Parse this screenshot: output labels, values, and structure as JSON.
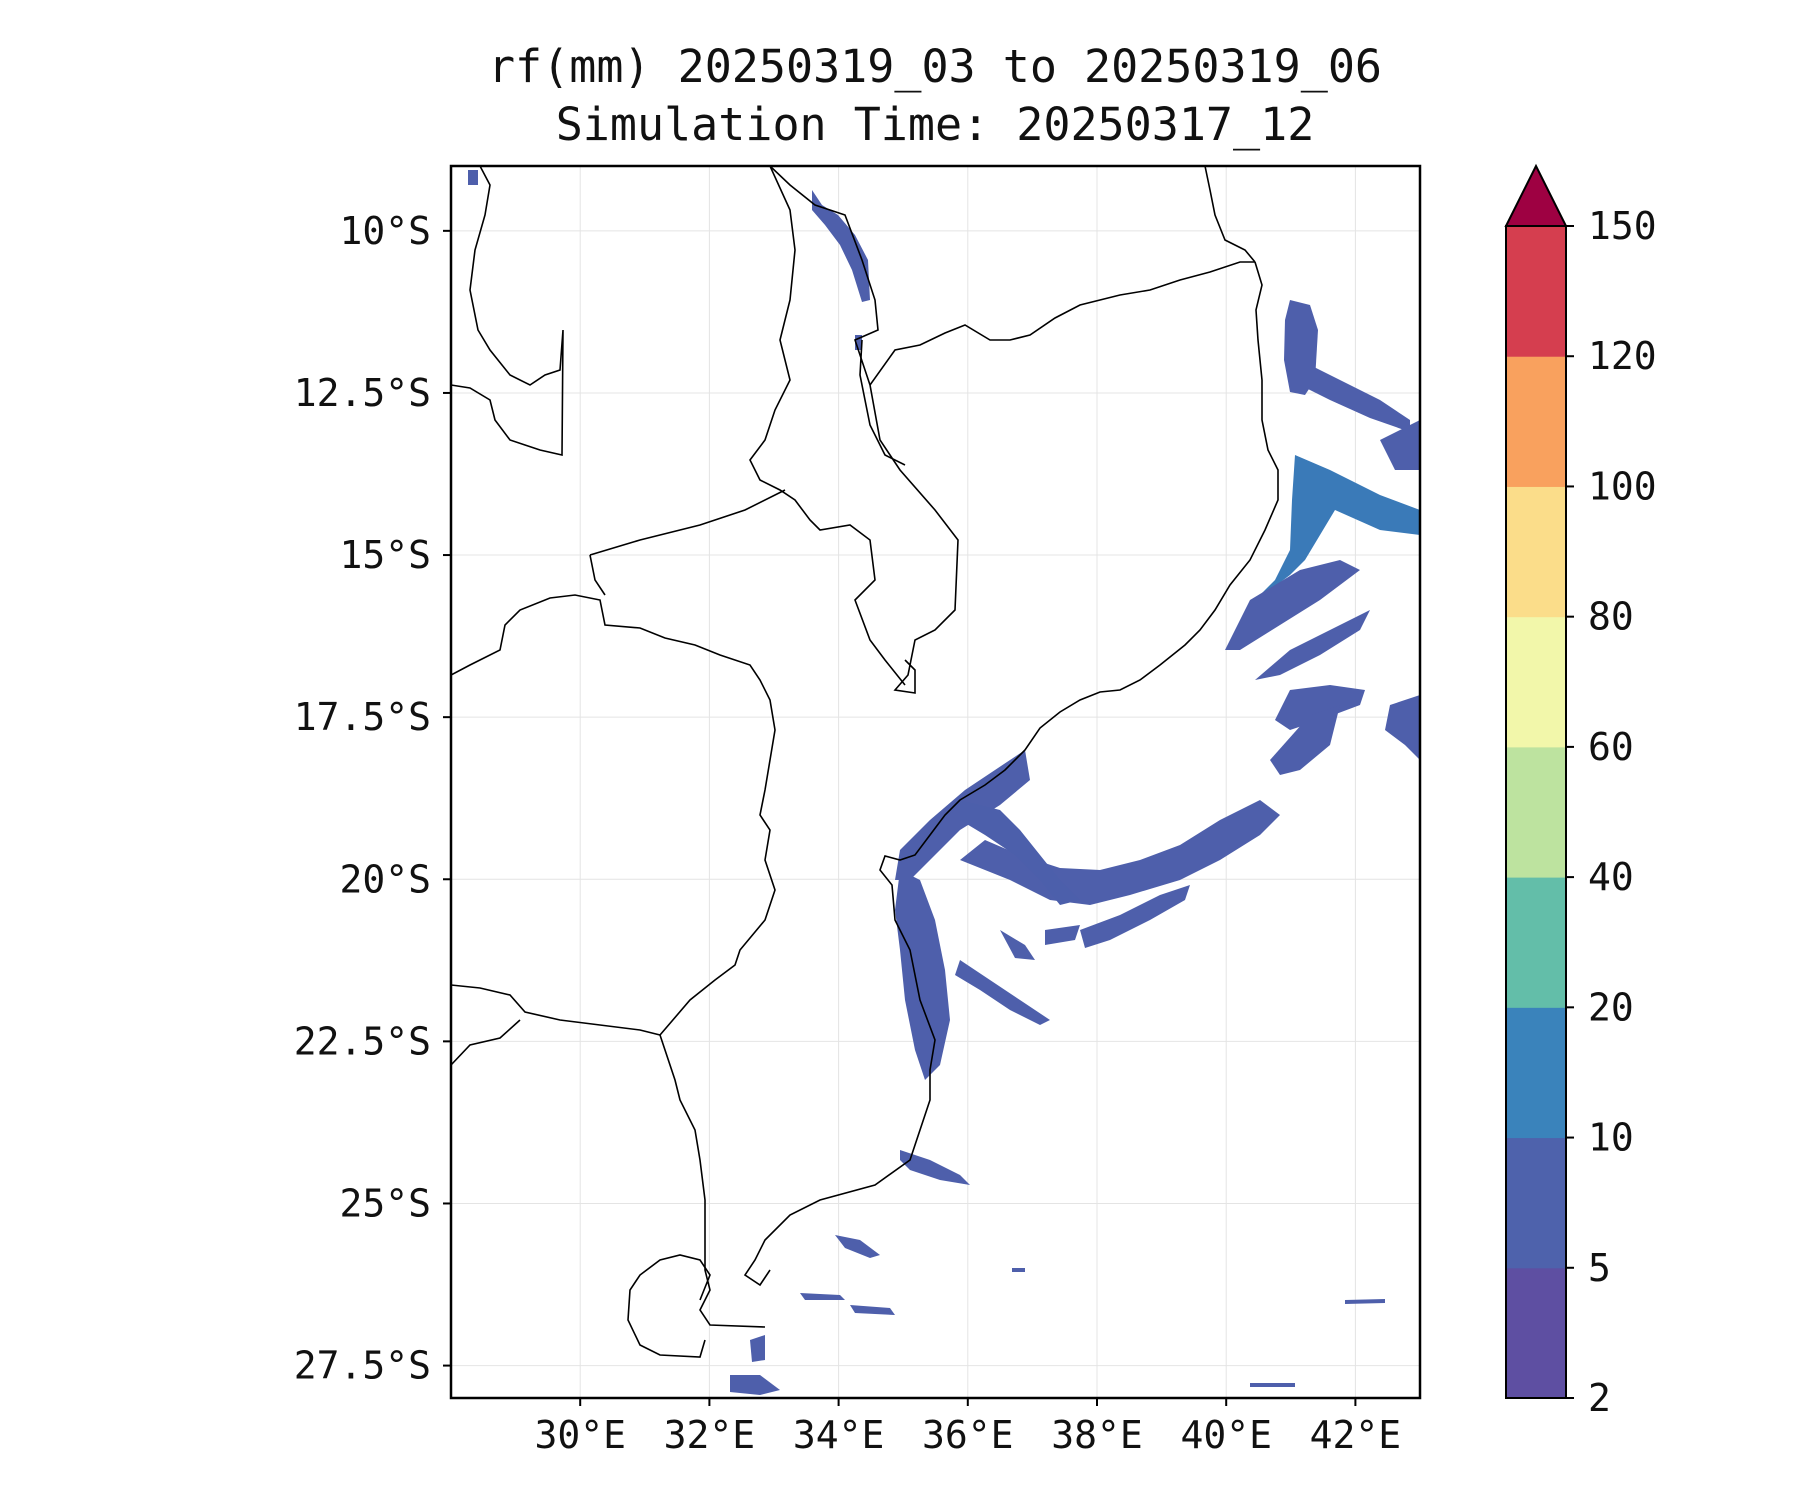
{
  "title_line1": "rf(mm) 20250319_03 to 20250319_06",
  "title_line2": "Simulation Time: 20250317_12",
  "map": {
    "lon_range": [
      28.0,
      43.0
    ],
    "lat_range": [
      -28.0,
      -9.0
    ],
    "lon_ticks": [
      {
        "value": 30,
        "label": "30°E"
      },
      {
        "value": 32,
        "label": "32°E"
      },
      {
        "value": 34,
        "label": "34°E"
      },
      {
        "value": 36,
        "label": "36°E"
      },
      {
        "value": 38,
        "label": "38°E"
      },
      {
        "value": 40,
        "label": "40°E"
      },
      {
        "value": 42,
        "label": "42°E"
      }
    ],
    "lat_ticks": [
      {
        "value": -10,
        "label": "10°S"
      },
      {
        "value": -12.5,
        "label": "12.5°S"
      },
      {
        "value": -15,
        "label": "15°S"
      },
      {
        "value": -17.5,
        "label": "17.5°S"
      },
      {
        "value": -20,
        "label": "20°S"
      },
      {
        "value": -22.5,
        "label": "22.5°S"
      },
      {
        "value": -25,
        "label": "25°S"
      },
      {
        "value": -27.5,
        "label": "27.5°S"
      }
    ],
    "gridlines": true
  },
  "colorbar": {
    "labels": [
      "2",
      "5",
      "10",
      "20",
      "40",
      "60",
      "80",
      "100",
      "120",
      "150"
    ],
    "colors": [
      "#5e4fa2",
      "#4e62ac",
      "#3a83bb",
      "#63bea9",
      "#bde39f",
      "#f2f7aa",
      "#fbdd8a",
      "#f9a15e",
      "#d53e4f"
    ],
    "extend_color": "#9e0142",
    "extend": "max"
  }
}
